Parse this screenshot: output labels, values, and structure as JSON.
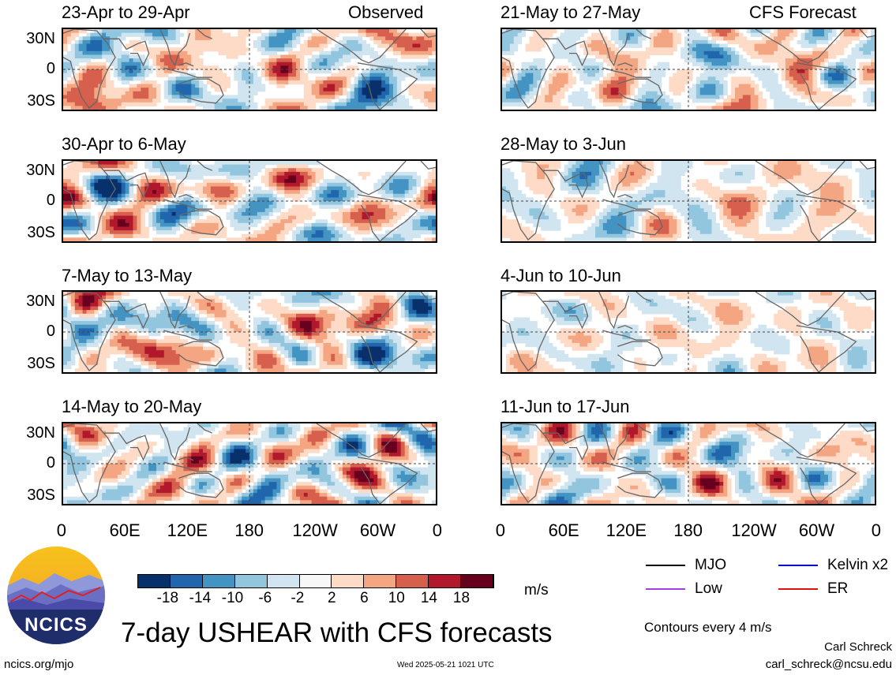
{
  "chart_data": {
    "type": "heatmap",
    "variable": "USHEAR",
    "units": "m/s",
    "y_ticks": [
      "30N",
      "0",
      "30S"
    ],
    "x_ticks": [
      "0",
      "60E",
      "120E",
      "180",
      "120W",
      "60W",
      "0"
    ],
    "colorbar": {
      "labels": [
        "-18",
        "-14",
        "-10",
        "-6",
        "-2",
        "2",
        "6",
        "10",
        "14",
        "18"
      ],
      "colors": [
        "#08306b",
        "#2166ac",
        "#4393c3",
        "#92c5de",
        "#d1e5f0",
        "#f7f7f7",
        "#fddbc7",
        "#f4a582",
        "#d6604d",
        "#b2182b",
        "#67001f"
      ]
    },
    "columns": [
      {
        "tag": "Observed",
        "panels": [
          {
            "title": "23-Apr to 29-Apr"
          },
          {
            "title": "30-Apr to 6-May"
          },
          {
            "title": "7-May to 13-May"
          },
          {
            "title": "14-May to 20-May"
          }
        ]
      },
      {
        "tag": "CFS Forecast",
        "panels": [
          {
            "title": "21-May to 27-May"
          },
          {
            "title": "28-May to 3-Jun"
          },
          {
            "title": "4-Jun to 10-Jun"
          },
          {
            "title": "11-Jun to 17-Jun"
          }
        ]
      }
    ],
    "legend": {
      "items": [
        {
          "label": "MJO",
          "color": "#000000"
        },
        {
          "label": "Kelvin x2",
          "color": "#0000cc"
        },
        {
          "label": "Low",
          "color": "#a040e0"
        },
        {
          "label": "ER",
          "color": "#dd1111"
        }
      ],
      "note": "Contours every 4 m/s"
    },
    "title": "7-day USHEAR with CFS forecasts"
  },
  "footer": {
    "logo_text": "NCICS",
    "site": "ncics.org/mjo",
    "timestamp": "Wed 2025-05-21 1021 UTC",
    "author": "Carl Schreck",
    "email": "carl_schreck@ncsu.edu"
  }
}
